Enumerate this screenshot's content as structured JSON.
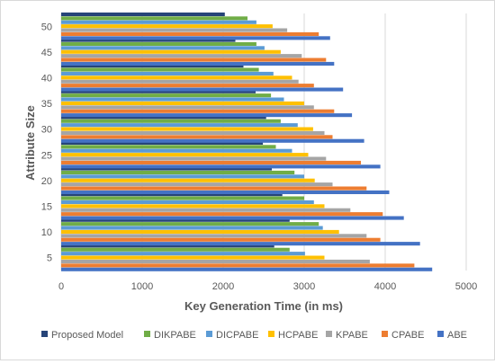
{
  "chart_data": {
    "type": "bar",
    "orientation": "horizontal",
    "title": "",
    "xlabel": "Key Generation Time (in ms)",
    "ylabel": "Attribute Size",
    "xlim": [
      0,
      5000
    ],
    "xticks": [
      "0",
      "1000",
      "2000",
      "3000",
      "4000",
      "5000"
    ],
    "grid": true,
    "legend_position": "bottom",
    "categories": [
      "5",
      "10",
      "15",
      "20",
      "25",
      "30",
      "35",
      "40",
      "45",
      "50"
    ],
    "series": [
      {
        "name": "ABE",
        "color": "#4472c4",
        "values": [
          4580,
          4430,
          4230,
          4050,
          3940,
          3740,
          3590,
          3480,
          3370,
          3320
        ]
      },
      {
        "name": "CPABE",
        "color": "#ed7d31",
        "values": [
          4360,
          3940,
          3970,
          3770,
          3700,
          3350,
          3370,
          3120,
          3270,
          3180
        ]
      },
      {
        "name": "KPABE",
        "color": "#a5a5a5",
        "values": [
          3810,
          3770,
          3570,
          3350,
          3270,
          3250,
          3120,
          2930,
          2970,
          2790
        ]
      },
      {
        "name": "HCPABE",
        "color": "#ffc000",
        "values": [
          3250,
          3430,
          3250,
          3130,
          3050,
          3110,
          3000,
          2850,
          2710,
          2610
        ]
      },
      {
        "name": "DICPABE",
        "color": "#5b9bd5",
        "values": [
          3010,
          3230,
          3120,
          3000,
          2850,
          2920,
          2750,
          2620,
          2510,
          2410
        ]
      },
      {
        "name": "DIKPABE",
        "color": "#70ad47",
        "values": [
          2820,
          3180,
          3000,
          2880,
          2650,
          2710,
          2590,
          2440,
          2410,
          2300
        ]
      },
      {
        "name": "Proposed Model",
        "color": "#264478",
        "values": [
          2630,
          2820,
          2730,
          2600,
          2490,
          2530,
          2400,
          2250,
          2150,
          2020
        ]
      }
    ],
    "legend_order": [
      "Proposed Model",
      "DIKPABE",
      "DICPABE",
      "HCPABE",
      "KPABE",
      "CPABE",
      "ABE"
    ]
  }
}
